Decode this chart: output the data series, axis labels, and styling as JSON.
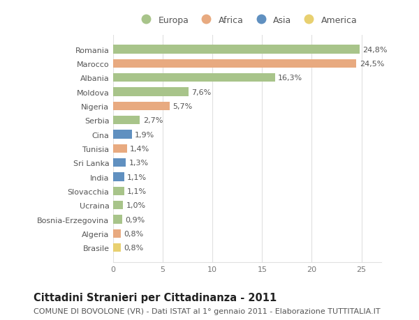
{
  "countries": [
    "Romania",
    "Marocco",
    "Albania",
    "Moldova",
    "Nigeria",
    "Serbia",
    "Cina",
    "Tunisia",
    "Sri Lanka",
    "India",
    "Slovacchia",
    "Ucraina",
    "Bosnia-Erzegovina",
    "Algeria",
    "Brasile"
  ],
  "values": [
    24.8,
    24.5,
    16.3,
    7.6,
    5.7,
    2.7,
    1.9,
    1.4,
    1.3,
    1.1,
    1.1,
    1.0,
    0.9,
    0.8,
    0.8
  ],
  "labels": [
    "24,8%",
    "24,5%",
    "16,3%",
    "7,6%",
    "5,7%",
    "2,7%",
    "1,9%",
    "1,4%",
    "1,3%",
    "1,1%",
    "1,1%",
    "1,0%",
    "0,9%",
    "0,8%",
    "0,8%"
  ],
  "continents": [
    "Europa",
    "Africa",
    "Europa",
    "Europa",
    "Africa",
    "Europa",
    "Asia",
    "Africa",
    "Asia",
    "Asia",
    "Europa",
    "Europa",
    "Europa",
    "Africa",
    "America"
  ],
  "continent_colors": {
    "Europa": "#a8c48a",
    "Africa": "#e8aa80",
    "Asia": "#6090c0",
    "America": "#e8d070"
  },
  "legend_order": [
    "Europa",
    "Africa",
    "Asia",
    "America"
  ],
  "xlim": [
    0,
    27
  ],
  "xticks": [
    0,
    5,
    10,
    15,
    20,
    25
  ],
  "title": "Cittadini Stranieri per Cittadinanza - 2011",
  "subtitle": "COMUNE DI BOVOLONE (VR) - Dati ISTAT al 1° gennaio 2011 - Elaborazione TUTTITALIA.IT",
  "bg_color": "#ffffff",
  "grid_color": "#e0e0e0",
  "bar_height": 0.6,
  "title_fontsize": 10.5,
  "subtitle_fontsize": 8,
  "label_fontsize": 8,
  "tick_fontsize": 8,
  "legend_fontsize": 9
}
